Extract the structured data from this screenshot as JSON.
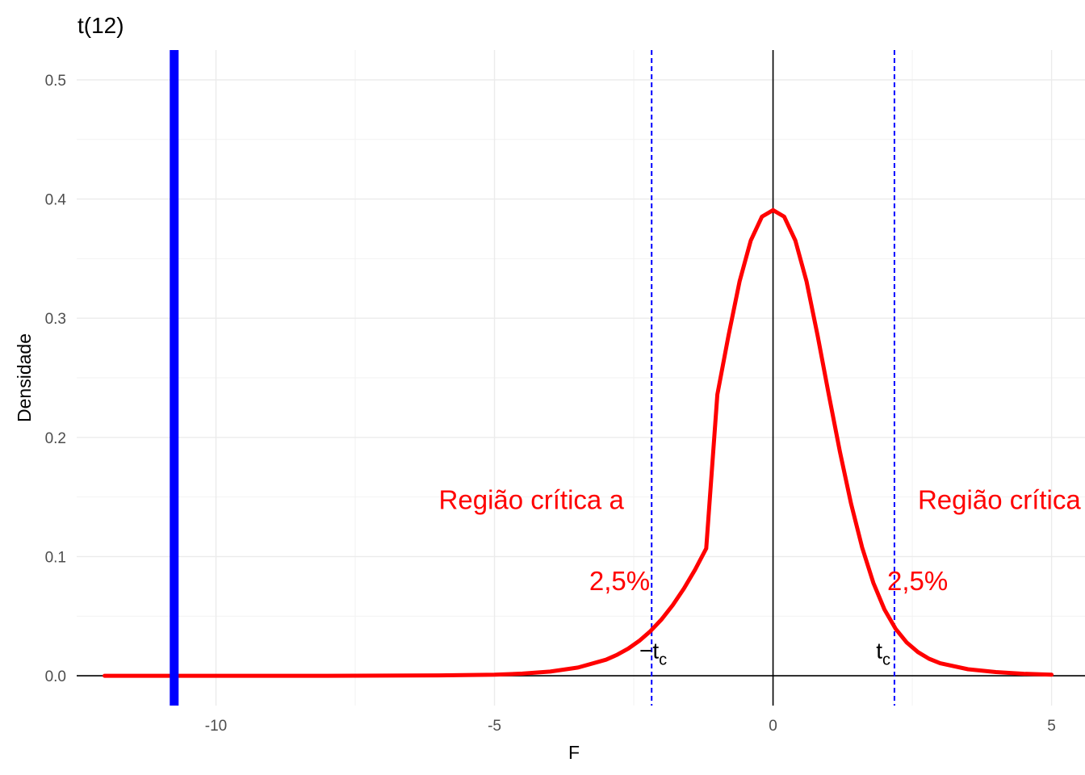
{
  "chart_data": {
    "type": "line",
    "title": "t(12)",
    "xlabel": "F",
    "ylabel": "Densidade",
    "xlim": [
      -12.5,
      5.6
    ],
    "ylim": [
      -0.025,
      0.525
    ],
    "x_ticks": [
      -10,
      -5,
      0,
      5
    ],
    "x_tick_labels": [
      "-10",
      "-5",
      "0",
      "5"
    ],
    "y_ticks": [
      0.0,
      0.1,
      0.2,
      0.3,
      0.4,
      0.5
    ],
    "y_tick_labels": [
      "0.0",
      "0.1",
      "0.2",
      "0.3",
      "0.4",
      "0.5"
    ],
    "grid": true,
    "series": [
      {
        "df": 12,
        "color": "#ff0000",
        "x": [
          -12,
          -10,
          -8,
          -6,
          -5,
          -4.5,
          -4,
          -3.5,
          -3,
          -2.8,
          -2.6,
          -2.4,
          -2.2,
          -2,
          -1.8,
          -1.6,
          -1.4,
          -1.2,
          -1,
          -0.8,
          -0.6,
          -0.4,
          -0.2,
          0,
          0.2,
          0.4,
          0.6,
          0.8,
          1,
          1.2,
          1.4,
          1.6,
          1.8,
          2,
          2.2,
          2.4,
          2.6,
          2.8,
          3,
          3.5,
          4,
          4.5,
          5
        ],
        "y": [
          0.0,
          0.0,
          0.0,
          0.0003,
          0.0009,
          0.0018,
          0.0035,
          0.0069,
          0.0135,
          0.0176,
          0.0228,
          0.0294,
          0.0375,
          0.0474,
          0.0593,
          0.0732,
          0.089,
          0.1068,
          0.236,
          0.2854,
          0.3311,
          0.3652,
          0.3852,
          0.3907,
          0.3852,
          0.3652,
          0.3311,
          0.2854,
          0.236,
          0.188,
          0.1445,
          0.1075,
          0.078,
          0.0556,
          0.0394,
          0.0279,
          0.0199,
          0.0143,
          0.0105,
          0.0055,
          0.0031,
          0.0017,
          0.0009
        ]
      }
    ],
    "reference_lines": {
      "vertical_solid_black": 0,
      "horizontal_solid_black": 0,
      "observed_statistic": {
        "x": -10.75,
        "color": "#0000ff"
      },
      "critical_values": {
        "x": [
          -2.179,
          2.179
        ],
        "color": "#0000ff",
        "style": "dashed"
      }
    },
    "annotations": [
      {
        "text": "Região crítica a",
        "x": -6.0,
        "y": 0.148,
        "color": "#ff0000"
      },
      {
        "text": "Região crítica a",
        "x": 2.6,
        "y": 0.148,
        "color": "#ff0000"
      },
      {
        "text": "2,5%",
        "x": -3.3,
        "y": 0.08,
        "color": "#ff0000"
      },
      {
        "text": "2,5%",
        "x": 2.05,
        "y": 0.08,
        "color": "#ff0000"
      }
    ],
    "tc_labels": [
      {
        "prefix": "−",
        "main": "t",
        "sub": "c",
        "x": -2.4,
        "y": 0.02
      },
      {
        "prefix": "",
        "main": "t",
        "sub": "c",
        "x": 1.85,
        "y": 0.02
      }
    ]
  }
}
